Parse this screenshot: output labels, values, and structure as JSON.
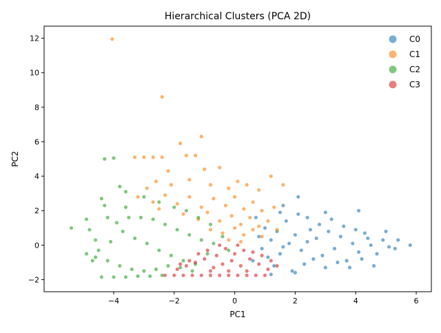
{
  "chart_data": {
    "type": "scatter",
    "title": "Hierarchical Clusters (PCA 2D)",
    "xlabel": "PC1",
    "ylabel": "PC2",
    "xlim": [
      -6.3,
      6.5
    ],
    "ylim": [
      -2.7,
      12.7
    ],
    "xticks": [
      -4,
      -2,
      0,
      2,
      4,
      6
    ],
    "yticks": [
      -2,
      0,
      2,
      4,
      6,
      8,
      10,
      12
    ],
    "xtick_labels": [
      "−4",
      "−2",
      "0",
      "2",
      "4",
      "6"
    ],
    "ytick_labels": [
      "−2",
      "0",
      "2",
      "4",
      "6",
      "8",
      "10",
      "12"
    ],
    "grid": false,
    "legend_position": "top-right",
    "series": [
      {
        "name": "C0",
        "color": "#1f77b4",
        "points": [
          [
            0.9,
            -0.2
          ],
          [
            1.2,
            0.3
          ],
          [
            1.5,
            -0.5
          ],
          [
            1.8,
            0.1
          ],
          [
            2.0,
            0.6
          ],
          [
            2.2,
            -0.3
          ],
          [
            2.4,
            0.2
          ],
          [
            2.6,
            -0.8
          ],
          [
            1.0,
            1.0
          ],
          [
            1.3,
            -1.2
          ],
          [
            1.7,
            1.4
          ],
          [
            1.9,
            -1.5
          ],
          [
            2.1,
            1.8
          ],
          [
            2.3,
            -1.1
          ],
          [
            2.5,
            0.9
          ],
          [
            2.7,
            0.4
          ],
          [
            2.9,
            -0.6
          ],
          [
            3.1,
            0.8
          ],
          [
            3.3,
            -0.2
          ],
          [
            3.5,
            0.5
          ],
          [
            3.7,
            -0.9
          ],
          [
            3.9,
            0.1
          ],
          [
            4.1,
            -0.4
          ],
          [
            4.3,
            0.7
          ],
          [
            4.5,
            0.0
          ],
          [
            4.7,
            -0.5
          ],
          [
            4.9,
            0.3
          ],
          [
            5.1,
            -0.1
          ],
          [
            5.4,
            0.3
          ],
          [
            5.8,
            0.0
          ],
          [
            4.1,
            2.0
          ],
          [
            2.1,
            2.8
          ],
          [
            1.6,
            2.3
          ],
          [
            0.6,
            -0.9
          ],
          [
            0.8,
            0.5
          ],
          [
            1.1,
            -0.7
          ],
          [
            1.4,
            0.8
          ],
          [
            1.6,
            -0.1
          ],
          [
            2.8,
            1.2
          ],
          [
            3.0,
            -1.3
          ],
          [
            3.2,
            1.5
          ],
          [
            3.4,
            -1.0
          ],
          [
            3.6,
            1.1
          ],
          [
            3.8,
            -1.3
          ],
          [
            4.0,
            0.9
          ],
          [
            4.2,
            -0.8
          ],
          [
            4.4,
            0.4
          ],
          [
            4.6,
            -1.2
          ],
          [
            5.0,
            0.8
          ],
          [
            5.3,
            -0.2
          ],
          [
            1.2,
            -1.7
          ],
          [
            2.0,
            -1.6
          ],
          [
            0.7,
            1.6
          ],
          [
            1.5,
            1.9
          ],
          [
            2.4,
            1.6
          ],
          [
            3.0,
            1.9
          ]
        ]
      },
      {
        "name": "C1",
        "color": "#ff7f0e",
        "points": [
          [
            -4.05,
            11.95
          ],
          [
            -2.4,
            8.6
          ],
          [
            -1.1,
            6.3
          ],
          [
            -1.8,
            5.9
          ],
          [
            -1.6,
            5.2
          ],
          [
            -1.3,
            5.2
          ],
          [
            -2.4,
            5.1
          ],
          [
            -2.7,
            5.1
          ],
          [
            -3.0,
            5.1
          ],
          [
            -3.3,
            5.1
          ],
          [
            -2.2,
            4.3
          ],
          [
            -1.0,
            4.4
          ],
          [
            -0.5,
            4.5
          ],
          [
            0.1,
            3.7
          ],
          [
            1.2,
            4.0
          ],
          [
            1.6,
            3.5
          ],
          [
            -2.6,
            3.7
          ],
          [
            -2.1,
            3.5
          ],
          [
            -1.5,
            3.8
          ],
          [
            -0.8,
            3.5
          ],
          [
            -0.2,
            3.3
          ],
          [
            0.4,
            3.5
          ],
          [
            0.8,
            3.2
          ],
          [
            -2.9,
            3.3
          ],
          [
            -3.2,
            2.8
          ],
          [
            -2.7,
            2.5
          ],
          [
            -2.3,
            2.9
          ],
          [
            -1.9,
            2.4
          ],
          [
            -1.5,
            2.8
          ],
          [
            -1.1,
            2.2
          ],
          [
            -0.7,
            2.7
          ],
          [
            -0.3,
            2.3
          ],
          [
            0.0,
            2.8
          ],
          [
            0.3,
            2.1
          ],
          [
            0.6,
            2.5
          ],
          [
            0.9,
            2.0
          ],
          [
            1.3,
            2.2
          ],
          [
            -1.7,
            1.8
          ],
          [
            -1.2,
            1.5
          ],
          [
            -0.9,
            1.9
          ],
          [
            -0.5,
            1.4
          ],
          [
            -0.1,
            1.7
          ],
          [
            0.2,
            1.2
          ],
          [
            0.5,
            1.6
          ],
          [
            0.8,
            1.1
          ],
          [
            1.1,
            1.4
          ],
          [
            1.4,
            0.9
          ],
          [
            -0.8,
            0.9
          ],
          [
            -0.4,
            0.7
          ],
          [
            0.0,
            1.0
          ],
          [
            0.3,
            0.6
          ],
          [
            0.6,
            0.9
          ],
          [
            0.9,
            0.5
          ],
          [
            -0.2,
            0.3
          ],
          [
            0.2,
            0.2
          ],
          [
            -2.5,
            2.1
          ]
        ]
      },
      {
        "name": "C2",
        "color": "#2ca02c",
        "points": [
          [
            -5.4,
            1.0
          ],
          [
            -4.9,
            1.5
          ],
          [
            -4.8,
            0.9
          ],
          [
            -4.6,
            0.3
          ],
          [
            -4.5,
            -0.3
          ],
          [
            -4.4,
            2.7
          ],
          [
            -4.3,
            2.3
          ],
          [
            -4.3,
            5.0
          ],
          [
            -4.0,
            5.05
          ],
          [
            -3.8,
            3.4
          ],
          [
            -3.6,
            3.1
          ],
          [
            -4.2,
            1.6
          ],
          [
            -3.9,
            1.3
          ],
          [
            -3.7,
            0.8
          ],
          [
            -3.5,
            1.6
          ],
          [
            -3.3,
            0.4
          ],
          [
            -3.1,
            1.6
          ],
          [
            -2.9,
            0.1
          ],
          [
            -2.7,
            1.5
          ],
          [
            -2.5,
            -0.3
          ],
          [
            -2.3,
            1.2
          ],
          [
            -2.1,
            -0.6
          ],
          [
            -1.9,
            0.9
          ],
          [
            -1.7,
            -0.9
          ],
          [
            -1.5,
            0.6
          ],
          [
            -1.3,
            -1.1
          ],
          [
            -1.1,
            0.3
          ],
          [
            -0.9,
            -0.5
          ],
          [
            -0.7,
            0.1
          ],
          [
            -4.4,
            -1.85
          ],
          [
            -4.0,
            -1.85
          ],
          [
            -3.6,
            -1.85
          ],
          [
            -3.2,
            -1.8
          ],
          [
            -2.8,
            -1.8
          ],
          [
            -2.4,
            -1.75
          ],
          [
            -4.6,
            -0.7
          ],
          [
            -4.2,
            -0.9
          ],
          [
            -3.8,
            -1.2
          ],
          [
            -3.4,
            -1.4
          ],
          [
            -3.0,
            -1.5
          ],
          [
            -2.6,
            -1.4
          ],
          [
            -2.2,
            -1.2
          ],
          [
            -1.8,
            -1.3
          ],
          [
            -1.4,
            -1.5
          ],
          [
            -4.9,
            -0.5
          ],
          [
            -4.7,
            -0.9
          ],
          [
            -2.5,
            2.5
          ],
          [
            -1.6,
            2.0
          ],
          [
            -0.4,
            0.5
          ],
          [
            -0.2,
            -0.3
          ],
          [
            -3.0,
            2.8
          ],
          [
            -1.2,
            1.6
          ],
          [
            -0.8,
            1.2
          ],
          [
            -2.0,
            2.2
          ],
          [
            -3.6,
            2.2
          ],
          [
            -4.1,
            0.2
          ]
        ]
      },
      {
        "name": "C3",
        "color": "#d62728",
        "points": [
          [
            -2.3,
            -1.75
          ],
          [
            -2.0,
            -1.75
          ],
          [
            -1.7,
            -1.75
          ],
          [
            -1.4,
            -1.75
          ],
          [
            -1.1,
            -1.75
          ],
          [
            -0.8,
            -1.75
          ],
          [
            -0.5,
            -1.75
          ],
          [
            -0.2,
            -1.75
          ],
          [
            0.1,
            -1.75
          ],
          [
            0.4,
            -1.75
          ],
          [
            0.7,
            -1.75
          ],
          [
            1.0,
            -1.75
          ],
          [
            -1.9,
            -1.4
          ],
          [
            -1.6,
            -1.2
          ],
          [
            -1.3,
            -1.0
          ],
          [
            -1.0,
            -0.8
          ],
          [
            -0.7,
            -1.3
          ],
          [
            -0.4,
            -1.1
          ],
          [
            -0.1,
            -0.9
          ],
          [
            0.2,
            -1.2
          ],
          [
            0.5,
            -0.8
          ],
          [
            0.8,
            -1.1
          ],
          [
            1.1,
            -1.4
          ],
          [
            -1.2,
            -0.5
          ],
          [
            -0.9,
            -0.3
          ],
          [
            -0.6,
            -0.6
          ],
          [
            -0.3,
            -0.2
          ],
          [
            0.0,
            -0.5
          ],
          [
            0.3,
            -0.3
          ],
          [
            0.6,
            -0.4
          ],
          [
            0.9,
            -0.6
          ],
          [
            1.2,
            -0.9
          ],
          [
            -0.5,
            0.0
          ],
          [
            0.1,
            0.0
          ],
          [
            -1.5,
            -0.9
          ],
          [
            -1.8,
            -1.1
          ],
          [
            -0.2,
            -1.5
          ],
          [
            0.4,
            -1.5
          ],
          [
            1.4,
            -1.2
          ],
          [
            -0.8,
            -1.5
          ]
        ]
      }
    ]
  }
}
